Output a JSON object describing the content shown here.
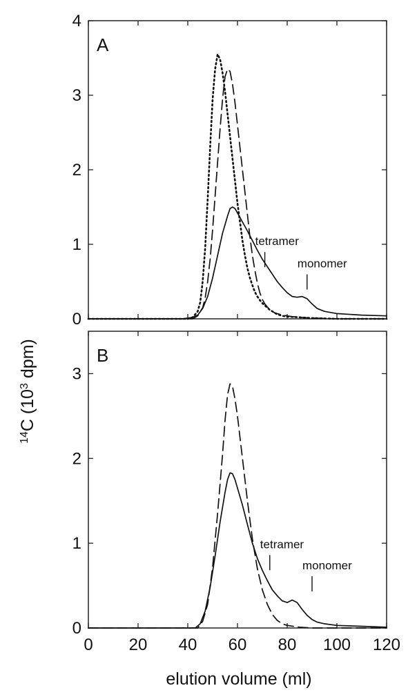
{
  "chart_data": {
    "type": "line",
    "xlabel": "elution volume (ml)",
    "ylabel_sup": "14",
    "ylabel_main": "C (10",
    "ylabel_exp": "3",
    "ylabel_tail": " dpm)",
    "xlim": [
      0,
      120
    ],
    "x_ticks": [
      0,
      20,
      40,
      60,
      80,
      100,
      120
    ],
    "grid": false,
    "panels": [
      {
        "label": "A",
        "ylim": [
          0,
          4
        ],
        "y_ticks": [
          0,
          1,
          2,
          3,
          4
        ],
        "series": [
          {
            "style": "dotted",
            "x": [
              0,
              40,
              42,
              44,
              45,
              46,
              47,
              48,
              49,
              50,
              51,
              52,
              53,
              54,
              55,
              56,
              57,
              58,
              59,
              60,
              61,
              62,
              63,
              64,
              65,
              66,
              67,
              68,
              69,
              70,
              71,
              72,
              73,
              74,
              75,
              76,
              78,
              80,
              85,
              90,
              100,
              120
            ],
            "y": [
              0,
              0,
              0.02,
              0.1,
              0.22,
              0.5,
              0.95,
              1.6,
              2.3,
              2.95,
              3.35,
              3.55,
              3.48,
              3.3,
              3.05,
              2.75,
              2.45,
              2.15,
              1.85,
              1.55,
              1.3,
              1.05,
              0.85,
              0.68,
              0.55,
              0.45,
              0.36,
              0.3,
              0.25,
              0.21,
              0.18,
              0.15,
              0.12,
              0.1,
              0.08,
              0.06,
              0.04,
              0.03,
              0.02,
              0.01,
              0,
              0
            ]
          },
          {
            "style": "dashed",
            "x": [
              0,
              42,
              44,
              46,
              47,
              48,
              49,
              50,
              51,
              52,
              53,
              54,
              55,
              56,
              57,
              58,
              59,
              60,
              61,
              62,
              63,
              64,
              65,
              66,
              67,
              68,
              69,
              70,
              71,
              72,
              73,
              74,
              75,
              76,
              77,
              78,
              80,
              82,
              85,
              90,
              100,
              120
            ],
            "y": [
              0,
              0,
              0.04,
              0.15,
              0.28,
              0.5,
              0.8,
              1.2,
              1.65,
              2.1,
              2.55,
              2.95,
              3.25,
              3.35,
              3.32,
              3.15,
              2.9,
              2.6,
              2.3,
              2.0,
              1.7,
              1.4,
              1.1,
              0.85,
              0.65,
              0.48,
              0.35,
              0.26,
              0.2,
              0.16,
              0.13,
              0.1,
              0.08,
              0.07,
              0.06,
              0.05,
              0.04,
              0.03,
              0.02,
              0.01,
              0,
              0
            ]
          },
          {
            "style": "solid",
            "x": [
              0,
              38,
              42,
              44,
              46,
              48,
              50,
              52,
              54,
              56,
              57,
              58,
              59,
              60,
              62,
              64,
              66,
              68,
              70,
              72,
              74,
              76,
              78,
              80,
              82,
              84,
              86,
              88,
              90,
              92,
              95,
              100,
              110,
              120
            ],
            "y": [
              0,
              0,
              0.02,
              0.05,
              0.14,
              0.3,
              0.55,
              0.85,
              1.15,
              1.38,
              1.48,
              1.5,
              1.48,
              1.42,
              1.3,
              1.18,
              1.05,
              0.92,
              0.8,
              0.7,
              0.6,
              0.5,
              0.42,
              0.35,
              0.3,
              0.29,
              0.3,
              0.27,
              0.2,
              0.14,
              0.1,
              0.07,
              0.05,
              0.04
            ]
          }
        ],
        "annotations": [
          {
            "text": "tetramer",
            "x": 71,
            "y": 0.6
          },
          {
            "text": "monomer",
            "x": 88,
            "y": 0.3
          }
        ]
      },
      {
        "label": "B",
        "ylim": [
          0,
          3.5
        ],
        "y_ticks": [
          0,
          1,
          2,
          3
        ],
        "series": [
          {
            "style": "dashed",
            "x": [
              0,
              44,
              46,
              48,
              50,
              52,
              54,
              55,
              56,
              57,
              58,
              59,
              60,
              62,
              64,
              66,
              68,
              70,
              72,
              74,
              76,
              78,
              80,
              85,
              90,
              100,
              120
            ],
            "y": [
              0,
              0,
              0.08,
              0.28,
              0.72,
              1.35,
              2.05,
              2.45,
              2.75,
              2.88,
              2.85,
              2.7,
              2.5,
              2.0,
              1.5,
              1.05,
              0.7,
              0.45,
              0.28,
              0.16,
              0.09,
              0.05,
              0.03,
              0.01,
              0,
              0,
              0
            ]
          },
          {
            "style": "solid",
            "x": [
              0,
              43,
              45,
              47,
              49,
              51,
              53,
              55,
              56,
              57,
              58,
              59,
              60,
              62,
              64,
              66,
              68,
              70,
              72,
              74,
              76,
              78,
              80,
              82,
              84,
              86,
              88,
              90,
              92,
              95,
              100,
              110,
              120
            ],
            "y": [
              0,
              0,
              0.05,
              0.2,
              0.48,
              0.85,
              1.25,
              1.6,
              1.75,
              1.83,
              1.82,
              1.75,
              1.65,
              1.45,
              1.22,
              1.0,
              0.82,
              0.68,
              0.56,
              0.45,
              0.38,
              0.32,
              0.3,
              0.33,
              0.3,
              0.22,
              0.15,
              0.1,
              0.07,
              0.05,
              0.03,
              0.02,
              0.01
            ]
          }
        ],
        "annotations": [
          {
            "text": "tetramer",
            "x": 73,
            "y": 0.6
          },
          {
            "text": "monomer",
            "x": 90,
            "y": 0.35
          }
        ]
      }
    ]
  }
}
